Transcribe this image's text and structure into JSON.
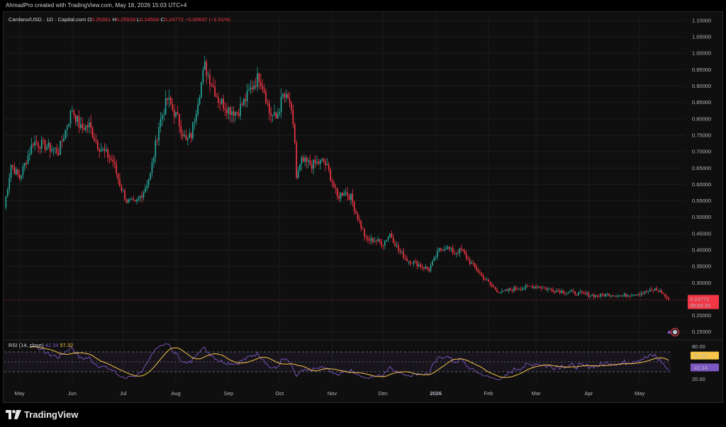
{
  "attribution": "AhmadPro created with TradingView.com, May 18, 2026 15:03 UTC+4",
  "footer_brand": "TradingView",
  "colors": {
    "up": "#26a69a",
    "down": "#f23645",
    "rsi": "#7e57c2",
    "rsi_ma": "#f7c548",
    "bg": "#0f0f0f"
  },
  "chart_data": [
    {
      "type": "candlestick",
      "legend": {
        "symbol": "Cardano/USD · 1D · Capital.com",
        "open_label": "O",
        "open": "0.25391",
        "high_label": "H",
        "high": "0.25528",
        "low_label": "L",
        "low": "0.24504",
        "close_label": "C",
        "close": "0.24772",
        "change": "−0.00637 (−2.51%)"
      },
      "last_price": "0.24772",
      "countdown": "09:56:25",
      "ylim": [
        0.13,
        1.115
      ],
      "y_ticks": [
        "1.10000",
        "1.05000",
        "1.00000",
        "0.95000",
        "0.90000",
        "0.85000",
        "0.80000",
        "0.75000",
        "0.70000",
        "0.65000",
        "0.60000",
        "0.55000",
        "0.50000",
        "0.45000",
        "0.40000",
        "0.35000",
        "0.30000",
        "0.20000",
        "0.15000"
      ],
      "x_ticks": [
        "May",
        "Jun",
        "Jul",
        "Aug",
        "Sep",
        "Oct",
        "Nov",
        "Dec",
        "2026",
        "Feb",
        "Mar",
        "Apr",
        "May"
      ],
      "x_range": [
        "2025-04-22",
        "2026-05-18"
      ],
      "price_path": [
        [
          "2025-04-22",
          0.53
        ],
        [
          "2025-04-26",
          0.66
        ],
        [
          "2025-05-01",
          0.62
        ],
        [
          "2025-05-09",
          0.73
        ],
        [
          "2025-05-15",
          0.72
        ],
        [
          "2025-05-24",
          0.7
        ],
        [
          "2025-06-01",
          0.83
        ],
        [
          "2025-06-06",
          0.77
        ],
        [
          "2025-06-11",
          0.78
        ],
        [
          "2025-06-16",
          0.72
        ],
        [
          "2025-06-25",
          0.67
        ],
        [
          "2025-06-29",
          0.6
        ],
        [
          "2025-07-03",
          0.55
        ],
        [
          "2025-07-08",
          0.54
        ],
        [
          "2025-07-13",
          0.58
        ],
        [
          "2025-07-17",
          0.63
        ],
        [
          "2025-07-22",
          0.78
        ],
        [
          "2025-07-27",
          0.86
        ],
        [
          "2025-08-02",
          0.8
        ],
        [
          "2025-08-07",
          0.73
        ],
        [
          "2025-08-10",
          0.75
        ],
        [
          "2025-08-14",
          0.86
        ],
        [
          "2025-08-18",
          0.96
        ],
        [
          "2025-08-22",
          0.91
        ],
        [
          "2025-08-26",
          0.86
        ],
        [
          "2025-09-01",
          0.83
        ],
        [
          "2025-09-06",
          0.82
        ],
        [
          "2025-09-11",
          0.86
        ],
        [
          "2025-09-15",
          0.9
        ],
        [
          "2025-09-19",
          0.93
        ],
        [
          "2025-09-22",
          0.89
        ],
        [
          "2025-09-25",
          0.82
        ],
        [
          "2025-09-29",
          0.8
        ],
        [
          "2025-10-03",
          0.87
        ],
        [
          "2025-10-07",
          0.85
        ],
        [
          "2025-10-10",
          0.73
        ],
        [
          "2025-10-11",
          0.62
        ],
        [
          "2025-10-14",
          0.67
        ],
        [
          "2025-10-20",
          0.66
        ],
        [
          "2025-10-27",
          0.67
        ],
        [
          "2025-10-30",
          0.64
        ],
        [
          "2025-11-04",
          0.56
        ],
        [
          "2025-11-08",
          0.58
        ],
        [
          "2025-11-12",
          0.56
        ],
        [
          "2025-11-16",
          0.5
        ],
        [
          "2025-11-21",
          0.43
        ],
        [
          "2025-11-26",
          0.43
        ],
        [
          "2025-12-01",
          0.42
        ],
        [
          "2025-12-05",
          0.45
        ],
        [
          "2025-12-10",
          0.4
        ],
        [
          "2025-12-15",
          0.37
        ],
        [
          "2025-12-20",
          0.36
        ],
        [
          "2025-12-28",
          0.34
        ],
        [
          "2026-01-03",
          0.4
        ],
        [
          "2026-01-07",
          0.41
        ],
        [
          "2026-01-12",
          0.39
        ],
        [
          "2026-01-16",
          0.4
        ],
        [
          "2026-01-20",
          0.37
        ],
        [
          "2026-01-25",
          0.34
        ],
        [
          "2026-01-30",
          0.31
        ],
        [
          "2026-02-05",
          0.28
        ],
        [
          "2026-02-09",
          0.27
        ],
        [
          "2026-02-14",
          0.28
        ],
        [
          "2026-02-22",
          0.285
        ],
        [
          "2026-03-01",
          0.29
        ],
        [
          "2026-03-08",
          0.28
        ],
        [
          "2026-03-15",
          0.275
        ],
        [
          "2026-03-22",
          0.27
        ],
        [
          "2026-03-30",
          0.265
        ],
        [
          "2026-04-06",
          0.26
        ],
        [
          "2026-04-13",
          0.265
        ],
        [
          "2026-04-20",
          0.26
        ],
        [
          "2026-04-27",
          0.265
        ],
        [
          "2026-05-04",
          0.27
        ],
        [
          "2026-05-10",
          0.28
        ],
        [
          "2026-05-14",
          0.27
        ],
        [
          "2026-05-18",
          0.248
        ]
      ]
    },
    {
      "type": "line",
      "legend": {
        "name": "RSI (14, close)",
        "rsi": "42.34",
        "rsi_ma": "57.32"
      },
      "ylim": [
        10,
        90
      ],
      "y_ticks": [
        "80.00",
        "20.00"
      ],
      "bands": [
        70,
        50,
        30
      ],
      "series": [
        {
          "name": "RSI",
          "values": []
        },
        {
          "name": "RSI MA",
          "values": []
        }
      ],
      "rsi_last": "42.34",
      "rsi_ma_last": "57.32"
    }
  ]
}
